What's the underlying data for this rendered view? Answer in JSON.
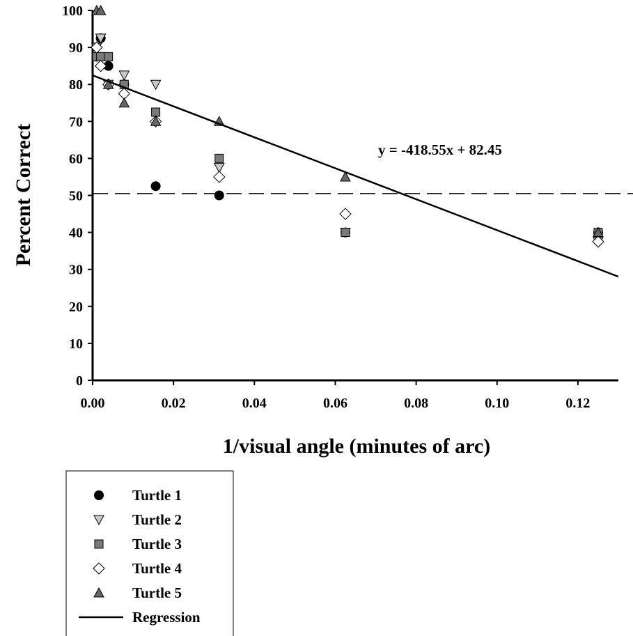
{
  "chart_data": {
    "type": "scatter",
    "xlabel": "1/visual angle (minutes of arc)",
    "ylabel": "Percent Correct",
    "xlim": [
      0,
      0.13
    ],
    "ylim": [
      0,
      100
    ],
    "x_ticks": [
      "0.00",
      "0.02",
      "0.04",
      "0.06",
      "0.08",
      "0.10",
      "0.12"
    ],
    "y_ticks": [
      "0",
      "10",
      "20",
      "30",
      "40",
      "50",
      "60",
      "70",
      "80",
      "90",
      "100"
    ],
    "chance_line": {
      "y": 50.5,
      "style": "dashed"
    },
    "regression": {
      "slope": -418.55,
      "intercept": 82.45,
      "label": "y = -418.55x + 82.45"
    },
    "series": [
      {
        "name": "Turtle 1",
        "marker": "circle",
        "color": "#000000",
        "points": [
          [
            0.001,
            87.5
          ],
          [
            0.002,
            92.5
          ],
          [
            0.0039,
            85
          ],
          [
            0.0078,
            80
          ],
          [
            0.0156,
            52.5
          ],
          [
            0.0313,
            50
          ],
          [
            0.0625,
            40
          ],
          [
            0.125,
            40
          ]
        ]
      },
      {
        "name": "Turtle 2",
        "marker": "triangle-down",
        "color": "#c8c8c8",
        "points": [
          [
            0.001,
            90
          ],
          [
            0.002,
            92.5
          ],
          [
            0.0039,
            80
          ],
          [
            0.0078,
            82.5
          ],
          [
            0.0156,
            80
          ],
          [
            0.0313,
            57.5
          ],
          [
            0.0625,
            40
          ],
          [
            0.125,
            37.5
          ]
        ]
      },
      {
        "name": "Turtle 3",
        "marker": "square",
        "color": "#7a7a7a",
        "points": [
          [
            0.001,
            87.5
          ],
          [
            0.002,
            87.5
          ],
          [
            0.0039,
            87.5
          ],
          [
            0.0078,
            80
          ],
          [
            0.0156,
            72.5
          ],
          [
            0.0313,
            60
          ],
          [
            0.0625,
            40
          ],
          [
            0.125,
            40
          ]
        ]
      },
      {
        "name": "Turtle 4",
        "marker": "diamond",
        "color": "#ffffff",
        "points": [
          [
            0.001,
            90
          ],
          [
            0.002,
            85
          ],
          [
            0.0039,
            80
          ],
          [
            0.0078,
            77.5
          ],
          [
            0.0156,
            70
          ],
          [
            0.0313,
            55
          ],
          [
            0.0625,
            45
          ],
          [
            0.125,
            37.5
          ]
        ]
      },
      {
        "name": "Turtle 5",
        "marker": "triangle-up",
        "color": "#666666",
        "points": [
          [
            0.001,
            100
          ],
          [
            0.002,
            100
          ],
          [
            0.0039,
            80
          ],
          [
            0.0078,
            75
          ],
          [
            0.0156,
            70
          ],
          [
            0.0313,
            70
          ],
          [
            0.0625,
            55
          ],
          [
            0.125,
            40
          ]
        ]
      }
    ],
    "legend": {
      "placement": "bottom-left",
      "items": [
        "Turtle 1",
        "Turtle 2",
        "Turtle 3",
        "Turtle 4",
        "Turtle 5",
        "Regression"
      ]
    }
  }
}
